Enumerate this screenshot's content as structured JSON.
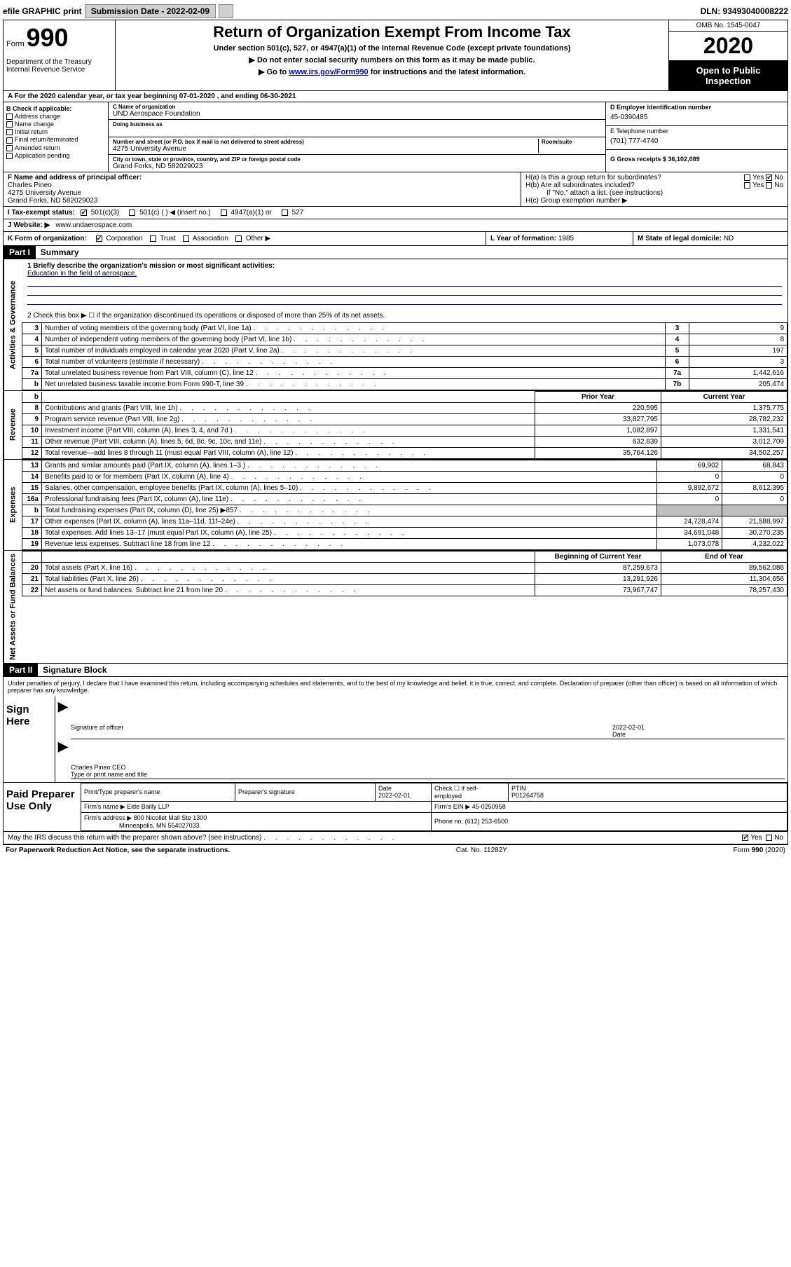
{
  "topbar": {
    "efile": "efile GRAPHIC print",
    "subdate_lbl": "Submission Date - 2022-02-09",
    "dln": "DLN: 93493040008222"
  },
  "header": {
    "form_lbl": "Form",
    "form_no": "990",
    "dept": "Department of the Treasury\nInternal Revenue Service",
    "title": "Return of Organization Exempt From Income Tax",
    "sub1": "Under section 501(c), 527, or 4947(a)(1) of the Internal Revenue Code (except private foundations)",
    "sub2": "▶ Do not enter social security numbers on this form as it may be made public.",
    "sub3_pre": "▶ Go to ",
    "sub3_link": "www.irs.gov/Form990",
    "sub3_post": " for instructions and the latest information.",
    "omb": "OMB No. 1545-0047",
    "year": "2020",
    "open1": "Open to Public",
    "open2": "Inspection"
  },
  "rowA": "A For the 2020 calendar year, or tax year beginning 07-01-2020     , and ending 06-30-2021",
  "colB": {
    "hdr": "B Check if applicable:",
    "items": [
      "Address change",
      "Name change",
      "Initial return",
      "Final return/terminated",
      "Amended return",
      "Application pending"
    ]
  },
  "colMid": {
    "c_lbl": "C Name of organization",
    "org_name": "UND Aerospace Foundation",
    "dba_lbl": "Doing business as",
    "addr_lbl": "Number and street (or P.O. box if mail is not delivered to street address)",
    "room_lbl": "Room/suite",
    "addr": "4275 University Avenue",
    "city_lbl": "City or town, state or province, country, and ZIP or foreign postal code",
    "city": "Grand Forks, ND  582029023"
  },
  "colD": {
    "d_lbl": "D Employer identification number",
    "ein": "45-0390485",
    "e_lbl": "E Telephone number",
    "phone": "(701) 777-4740",
    "g_lbl": "G Gross receipts $ 36,102,089"
  },
  "fgh": {
    "f_lbl": "F  Name and address of principal officer:",
    "f_name": "Charles Pineo",
    "f_addr1": "4275 University Avenue",
    "f_addr2": "Grand Forks, ND  582029023",
    "ha_lbl": "H(a)  Is this a group return for subordinates?",
    "hb_lbl": "H(b)  Are all subordinates included?",
    "hb_note": "If \"No,\" attach a list. (see instructions)",
    "hc_lbl": "H(c)  Group exemption number ▶",
    "yes": "Yes",
    "no": "No"
  },
  "status": {
    "i_lbl": "I  Tax-exempt status:",
    "opts": [
      "501(c)(3)",
      "501(c) (  )  ◀ (insert no.)",
      "4947(a)(1) or",
      "527"
    ],
    "checked_idx": 0
  },
  "website": {
    "lbl": "J  Website: ▶",
    "val": "www.undaerospace.com"
  },
  "km": {
    "k": "K Form of organization:",
    "k_opts": [
      "Corporation",
      "Trust",
      "Association",
      "Other ▶"
    ],
    "k_checked_idx": 0,
    "l_lbl": "L Year of formation:",
    "l_val": "1985",
    "m_lbl": "M State of legal domicile:",
    "m_val": "ND"
  },
  "part1": {
    "hdr": "Part I",
    "title": "Summary",
    "mission_lbl": "1  Briefly describe the organization's mission or most significant activities:",
    "mission": "Education in the field of aerospace.",
    "line2": "2    Check this box ▶ ☐  if the organization discontinued its operations or disposed of more than 25% of its net assets.",
    "rows_a": [
      {
        "n": "3",
        "d": "Number of voting members of the governing body (Part VI, line 1a)",
        "c": "3",
        "v": "9"
      },
      {
        "n": "4",
        "d": "Number of independent voting members of the governing body (Part VI, line 1b)",
        "c": "4",
        "v": "8"
      },
      {
        "n": "5",
        "d": "Total number of individuals employed in calendar year 2020 (Part V, line 2a)",
        "c": "5",
        "v": "197"
      },
      {
        "n": "6",
        "d": "Total number of volunteers (estimate if necessary)",
        "c": "6",
        "v": "3"
      },
      {
        "n": "7a",
        "d": "Total unrelated business revenue from Part VIII, column (C), line 12",
        "c": "7a",
        "v": "1,442,616"
      },
      {
        "n": "b",
        "d": "Net unrelated business taxable income from Form 990-T, line 39",
        "c": "7b",
        "v": "205,474"
      }
    ],
    "col_prior": "Prior Year",
    "col_curr": "Current Year",
    "revenue": [
      {
        "n": "8",
        "d": "Contributions and grants (Part VIII, line 1h)",
        "p": "220,595",
        "c": "1,375,775"
      },
      {
        "n": "9",
        "d": "Program service revenue (Part VIII, line 2g)",
        "p": "33,827,795",
        "c": "28,782,232"
      },
      {
        "n": "10",
        "d": "Investment income (Part VIII, column (A), lines 3, 4, and 7d )",
        "p": "1,082,897",
        "c": "1,331,541"
      },
      {
        "n": "11",
        "d": "Other revenue (Part VIII, column (A), lines 5, 6d, 8c, 9c, 10c, and 11e)",
        "p": "632,839",
        "c": "3,012,709"
      },
      {
        "n": "12",
        "d": "Total revenue—add lines 8 through 11 (must equal Part VIII, column (A), line 12)",
        "p": "35,764,126",
        "c": "34,502,257"
      }
    ],
    "expenses": [
      {
        "n": "13",
        "d": "Grants and similar amounts paid (Part IX, column (A), lines 1–3 )",
        "p": "69,902",
        "c": "68,843"
      },
      {
        "n": "14",
        "d": "Benefits paid to or for members (Part IX, column (A), line 4)",
        "p": "0",
        "c": "0"
      },
      {
        "n": "15",
        "d": "Salaries, other compensation, employee benefits (Part IX, column (A), lines 5–10)",
        "p": "9,892,672",
        "c": "8,612,395"
      },
      {
        "n": "16a",
        "d": "Professional fundraising fees (Part IX, column (A), line 11e)",
        "p": "0",
        "c": "0"
      },
      {
        "n": "b",
        "d": "Total fundraising expenses (Part IX, column (D), line 25) ▶857",
        "p": "",
        "c": "",
        "shade": true
      },
      {
        "n": "17",
        "d": "Other expenses (Part IX, column (A), lines 11a–11d, 11f–24e)",
        "p": "24,728,474",
        "c": "21,588,997"
      },
      {
        "n": "18",
        "d": "Total expenses. Add lines 13–17 (must equal Part IX, column (A), line 25)",
        "p": "34,691,048",
        "c": "30,270,235"
      },
      {
        "n": "19",
        "d": "Revenue less expenses. Subtract line 18 from line 12",
        "p": "1,073,078",
        "c": "4,232,022"
      }
    ],
    "col_boy": "Beginning of Current Year",
    "col_eoy": "End of Year",
    "netassets": [
      {
        "n": "20",
        "d": "Total assets (Part X, line 16)",
        "p": "87,259,673",
        "c": "89,562,086"
      },
      {
        "n": "21",
        "d": "Total liabilities (Part X, line 26)",
        "p": "13,291,926",
        "c": "11,304,656"
      },
      {
        "n": "22",
        "d": "Net assets or fund balances. Subtract line 21 from line 20",
        "p": "73,967,747",
        "c": "78,257,430"
      }
    ],
    "tabs": {
      "ag": "Activities & Governance",
      "rev": "Revenue",
      "exp": "Expenses",
      "na": "Net Assets or Fund Balances"
    }
  },
  "part2": {
    "hdr": "Part II",
    "title": "Signature Block",
    "perjury": "Under penalties of perjury, I declare that I have examined this return, including accompanying schedules and statements, and to the best of my knowledge and belief, it is true, correct, and complete. Declaration of preparer (other than officer) is based on all information of which preparer has any knowledge.",
    "sign_here": "Sign Here",
    "sig_officer": "Signature of officer",
    "sig_date_lbl": "Date",
    "sig_date": "2022-02-01",
    "officer_name": "Charles Pineo CEO",
    "type_lbl": "Type or print name and title",
    "paid": "Paid Preparer Use Only",
    "prep_name_lbl": "Print/Type preparer's name",
    "prep_sig_lbl": "Preparer's signature",
    "prep_date": "2022-02-01",
    "self_emp": "Check ☐ if self-employed",
    "ptin_lbl": "PTIN",
    "ptin": "P01264758",
    "firm_name_lbl": "Firm's name    ▶",
    "firm_name": "Eide Bailly LLP",
    "firm_ein_lbl": "Firm's EIN ▶",
    "firm_ein": "45-0250958",
    "firm_addr_lbl": "Firm's address ▶",
    "firm_addr1": "800 Nicollet Mall Ste 1300",
    "firm_addr2": "Minneapolis, MN  554027033",
    "firm_phone_lbl": "Phone no.",
    "firm_phone": "(612) 253-6500",
    "discuss": "May the IRS discuss this return with the preparer shown above? (see instructions)",
    "yes": "Yes",
    "no": "No"
  },
  "footer": {
    "left": "For Paperwork Reduction Act Notice, see the separate instructions.",
    "mid": "Cat. No. 11282Y",
    "right": "Form 990 (2020)"
  },
  "colors": {
    "link": "#0000cc",
    "bg": "#ffffff",
    "border": "#000000",
    "shade": "#bfbfbf"
  }
}
